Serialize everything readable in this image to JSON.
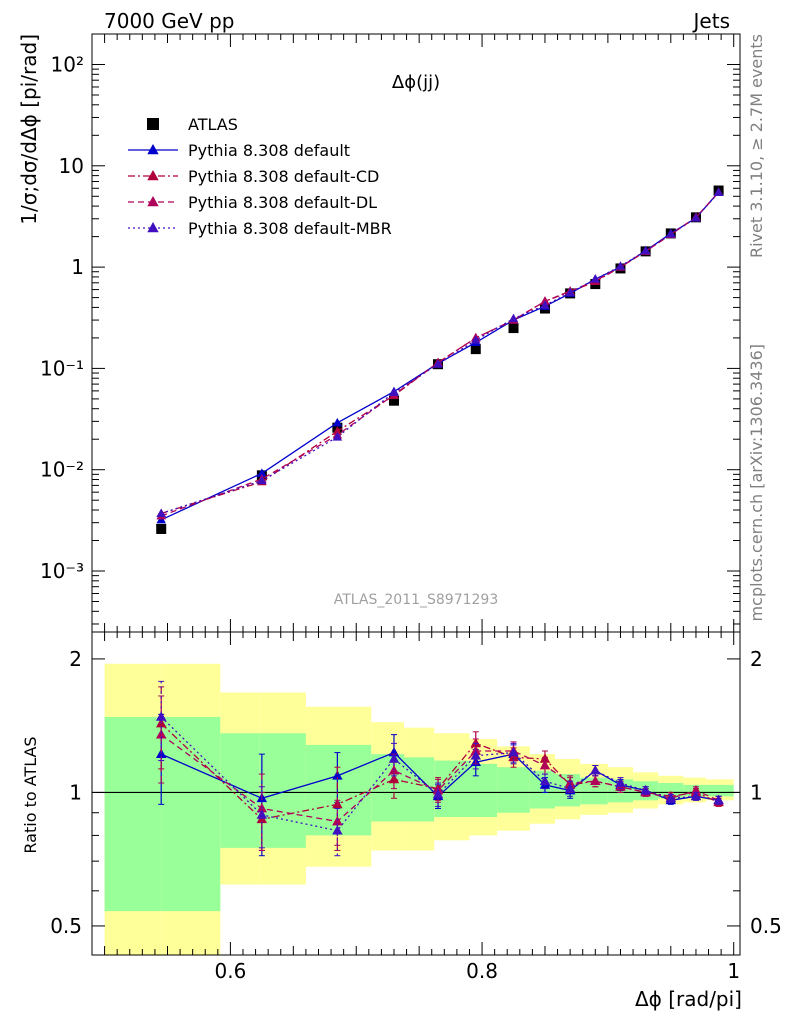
{
  "header": {
    "left": "7000 GeV pp",
    "right": "Jets"
  },
  "side_labels": {
    "rivet": "Rivet 3.1.10, ≥ 2.7M events",
    "mcplots": "mcplots.cern.ch [arXiv:1306.3436]"
  },
  "chart_data": [
    {
      "type": "scatter",
      "title": "Δϕ(jj)",
      "watermark": "ATLAS_2011_S8971293",
      "ylabel": "1/σ;dσ/dΔϕ [pi/rad]",
      "xlabel": "Δϕ [rad/pi]",
      "xlim": [
        0.49,
        1.005
      ],
      "ylim": [
        0.00025,
        200
      ],
      "yscale": "log",
      "x_ticks": [
        0.6,
        0.8,
        1
      ],
      "x_tick_labels": [
        "0.6",
        "0.8",
        "1"
      ],
      "y_ticks": [
        0.001,
        0.01,
        0.1,
        1,
        10,
        100
      ],
      "y_tick_labels": [
        "10⁻³",
        "10⁻²",
        "10⁻¹",
        "1",
        "10",
        "10²"
      ],
      "legend_position": "top-left",
      "x": [
        0.545,
        0.625,
        0.685,
        0.73,
        0.765,
        0.795,
        0.825,
        0.85,
        0.87,
        0.89,
        0.91,
        0.93,
        0.95,
        0.97,
        0.988
      ],
      "series": [
        {
          "name": "ATLAS",
          "color": "#000000",
          "marker": "square",
          "line": "none",
          "values": [
            0.0026,
            0.0088,
            0.026,
            0.048,
            0.11,
            0.155,
            0.25,
            0.39,
            0.55,
            0.68,
            0.97,
            1.43,
            2.15,
            3.1,
            5.7
          ]
        },
        {
          "name": "Pythia 8.308 default",
          "color": "#0000cc",
          "marker": "triangle",
          "line": "solid",
          "values": [
            0.0032,
            0.0092,
            0.029,
            0.059,
            0.112,
            0.18,
            0.3,
            0.41,
            0.55,
            0.76,
            1.0,
            1.45,
            2.15,
            3.05,
            5.5
          ]
        },
        {
          "name": "Pythia 8.308 default-CD",
          "color": "#b0003a",
          "marker": "triangle",
          "line": "dashdot",
          "values": [
            0.0037,
            0.0076,
            0.024,
            0.054,
            0.114,
            0.2,
            0.3,
            0.46,
            0.57,
            0.72,
            1.0,
            1.43,
            2.1,
            3.1,
            5.45
          ]
        },
        {
          "name": "Pythia 8.308 default-DL",
          "color": "#b0005a",
          "marker": "triangle",
          "line": "dashed",
          "values": [
            0.0035,
            0.0081,
            0.022,
            0.055,
            0.114,
            0.2,
            0.3,
            0.46,
            0.58,
            0.73,
            1.0,
            1.43,
            2.1,
            3.1,
            5.45
          ]
        },
        {
          "name": "Pythia 8.308 default-MBR",
          "color": "#4010c0",
          "marker": "triangle",
          "line": "dotted",
          "values": [
            0.0037,
            0.0078,
            0.021,
            0.058,
            0.11,
            0.19,
            0.31,
            0.42,
            0.56,
            0.76,
            1.02,
            1.45,
            2.12,
            3.05,
            5.45
          ]
        }
      ]
    },
    {
      "type": "line",
      "ylabel": "Ratio to ATLAS",
      "yscale": "log",
      "ylim": [
        0.43,
        2.3
      ],
      "y_ticks": [
        0.5,
        1,
        2
      ],
      "y_tick_labels": [
        "0.5",
        "1",
        "2"
      ],
      "reference_line": 1,
      "bands": {
        "edges": [
          0.5,
          0.545,
          0.592,
          0.623,
          0.66,
          0.712,
          0.738,
          0.762,
          0.79,
          0.812,
          0.838,
          0.858,
          0.878,
          0.9,
          0.92,
          0.94,
          0.96,
          0.978,
          1.0
        ],
        "green_color": "#99ff99",
        "yellow_color": "#ffff99",
        "green_lo": [
          0.54,
          0.54,
          0.75,
          0.75,
          0.8,
          0.86,
          0.86,
          0.88,
          0.88,
          0.9,
          0.92,
          0.93,
          0.94,
          0.95,
          0.96,
          0.97,
          0.98,
          0.98
        ],
        "green_hi": [
          1.48,
          1.48,
          1.36,
          1.36,
          1.28,
          1.22,
          1.2,
          1.18,
          1.16,
          1.14,
          1.12,
          1.1,
          1.08,
          1.07,
          1.06,
          1.05,
          1.04,
          1.04
        ],
        "yellow_lo": [
          0.0,
          0.0,
          0.62,
          0.62,
          0.68,
          0.74,
          0.74,
          0.78,
          0.8,
          0.82,
          0.85,
          0.87,
          0.89,
          0.9,
          0.92,
          0.94,
          0.95,
          0.96
        ],
        "yellow_hi": [
          1.95,
          1.95,
          1.68,
          1.68,
          1.56,
          1.44,
          1.4,
          1.36,
          1.32,
          1.27,
          1.22,
          1.19,
          1.16,
          1.14,
          1.11,
          1.09,
          1.08,
          1.07
        ]
      },
      "series": [
        {
          "name": "Pythia 8.308 default",
          "color": "#0000cc",
          "line": "solid",
          "values": [
            1.22,
            0.97,
            1.09,
            1.23,
            0.98,
            1.17,
            1.22,
            1.04,
            1.01,
            1.12,
            1.04,
            1.01,
            0.96,
            0.98,
            0.96
          ],
          "err": [
            0.28,
            0.25,
            0.14,
            0.12,
            0.06,
            0.08,
            0.06,
            0.04,
            0.04,
            0.03,
            0.03,
            0.02,
            0.02,
            0.02,
            0.02
          ]
        },
        {
          "name": "Pythia 8.308 default-CD",
          "color": "#b0003a",
          "line": "dashdot",
          "values": [
            1.43,
            0.87,
            0.94,
            1.07,
            1.02,
            1.29,
            1.2,
            1.19,
            1.04,
            1.06,
            1.03,
            1.0,
            0.98,
            1.0,
            0.95
          ],
          "err": [
            0.3,
            0.13,
            0.2,
            0.1,
            0.06,
            0.08,
            0.06,
            0.05,
            0.04,
            0.03,
            0.03,
            0.02,
            0.02,
            0.02,
            0.02
          ]
        },
        {
          "name": "Pythia 8.308 default-DL",
          "color": "#b0005a",
          "line": "dashed",
          "values": [
            1.35,
            0.92,
            0.86,
            1.12,
            1.01,
            1.24,
            1.24,
            1.15,
            1.05,
            1.06,
            1.03,
            1.0,
            0.97,
            1.01,
            0.96
          ],
          "err": [
            0.3,
            0.18,
            0.1,
            0.1,
            0.06,
            0.08,
            0.06,
            0.05,
            0.04,
            0.03,
            0.03,
            0.02,
            0.02,
            0.02,
            0.02
          ]
        },
        {
          "name": "Pythia 8.308 default-MBR",
          "color": "#4010c0",
          "line": "dotted",
          "values": [
            1.48,
            0.89,
            0.82,
            1.19,
            0.99,
            1.21,
            1.23,
            1.06,
            1.02,
            1.12,
            1.05,
            1.01,
            0.97,
            0.98,
            0.96
          ],
          "err": [
            0.3,
            0.14,
            0.1,
            0.1,
            0.06,
            0.08,
            0.06,
            0.04,
            0.04,
            0.03,
            0.03,
            0.02,
            0.02,
            0.02,
            0.02
          ]
        }
      ]
    }
  ]
}
